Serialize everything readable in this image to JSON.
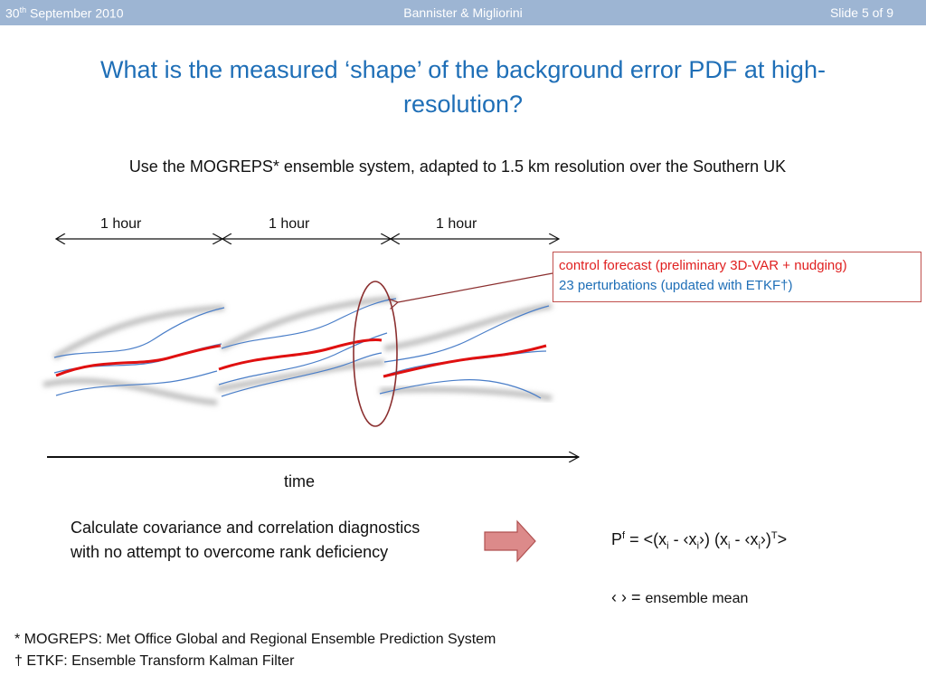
{
  "header": {
    "date_num": "30",
    "date_sup": "th",
    "date_rest": " September 2010",
    "authors": "Bannister & Migliorini",
    "slide": "Slide 5 of 9"
  },
  "title": "What is the measured ‘shape’ of the background error PDF at high-resolution?",
  "subtitle": "Use the MOGREPS* ensemble system, adapted to 1.5 km resolution over the Southern UK",
  "diagram": {
    "hour_labels": [
      "1 hour",
      "1 hour",
      "1 hour"
    ],
    "time_label": "time",
    "legend": {
      "control": "control forecast (preliminary 3D-VAR + nudging)",
      "perturbations": "23 perturbations (updated with ETKF†)"
    },
    "colors": {
      "control": "#e01010",
      "perturbation": "#4a7ec8",
      "ellipse": "#8b2f2f",
      "arrow_fill": "#dc8a8a"
    }
  },
  "calc_text": "Calculate covariance and correlation diagnostics with no attempt to overcome rank deficiency",
  "formula": {
    "p": "P",
    "f": "f",
    "eq": " = <(x",
    "i": "i",
    "mid1": " - ‹x",
    "close1": "›) (x",
    "mid2": " - ‹x",
    "close2": "›)",
    "t": "T",
    "end": ">"
  },
  "mean": {
    "symbols": "‹ › = ",
    "text": "ensemble mean"
  },
  "footnotes": [
    "* MOGREPS: Met Office Global and Regional Ensemble Prediction System",
    "† ETKF: Ensemble Transform Kalman Filter"
  ]
}
